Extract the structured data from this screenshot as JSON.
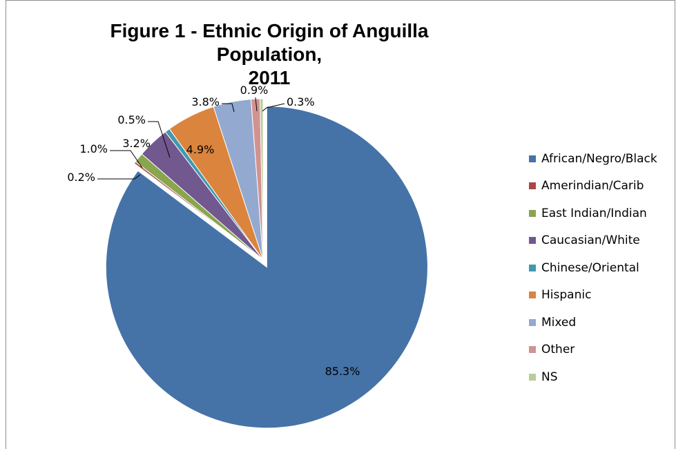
{
  "chart_data": {
    "type": "pie",
    "title": "Figure 1 - Ethnic Origin of Anguilla Population, 2011",
    "title_lines": [
      "Figure 1 - Ethnic Origin of Anguilla Population,",
      "2011"
    ],
    "legend_position": "right",
    "series": [
      {
        "label": "African/Negro/Black",
        "value": 85.3,
        "display": "85.3%",
        "color": "#4573A7",
        "exploded": true
      },
      {
        "label": "Amerindian/Carib",
        "value": 0.2,
        "display": "0.2%",
        "color": "#AA4643"
      },
      {
        "label": "East Indian/Indian",
        "value": 1.0,
        "display": "1.0%",
        "color": "#89A54E"
      },
      {
        "label": "Caucasian/White",
        "value": 3.2,
        "display": "3.2%",
        "color": "#71588F"
      },
      {
        "label": "Chinese/Oriental",
        "value": 0.5,
        "display": "0.5%",
        "color": "#4198AF"
      },
      {
        "label": "Hispanic",
        "value": 4.9,
        "display": "4.9%",
        "color": "#DB843D"
      },
      {
        "label": "Mixed",
        "value": 3.8,
        "display": "3.8%",
        "color": "#93A9CF"
      },
      {
        "label": "Other",
        "value": 0.9,
        "display": "0.9%",
        "color": "#D19392"
      },
      {
        "label": "NS",
        "value": 0.3,
        "display": "0.3%",
        "color": "#B9CD96"
      }
    ]
  }
}
